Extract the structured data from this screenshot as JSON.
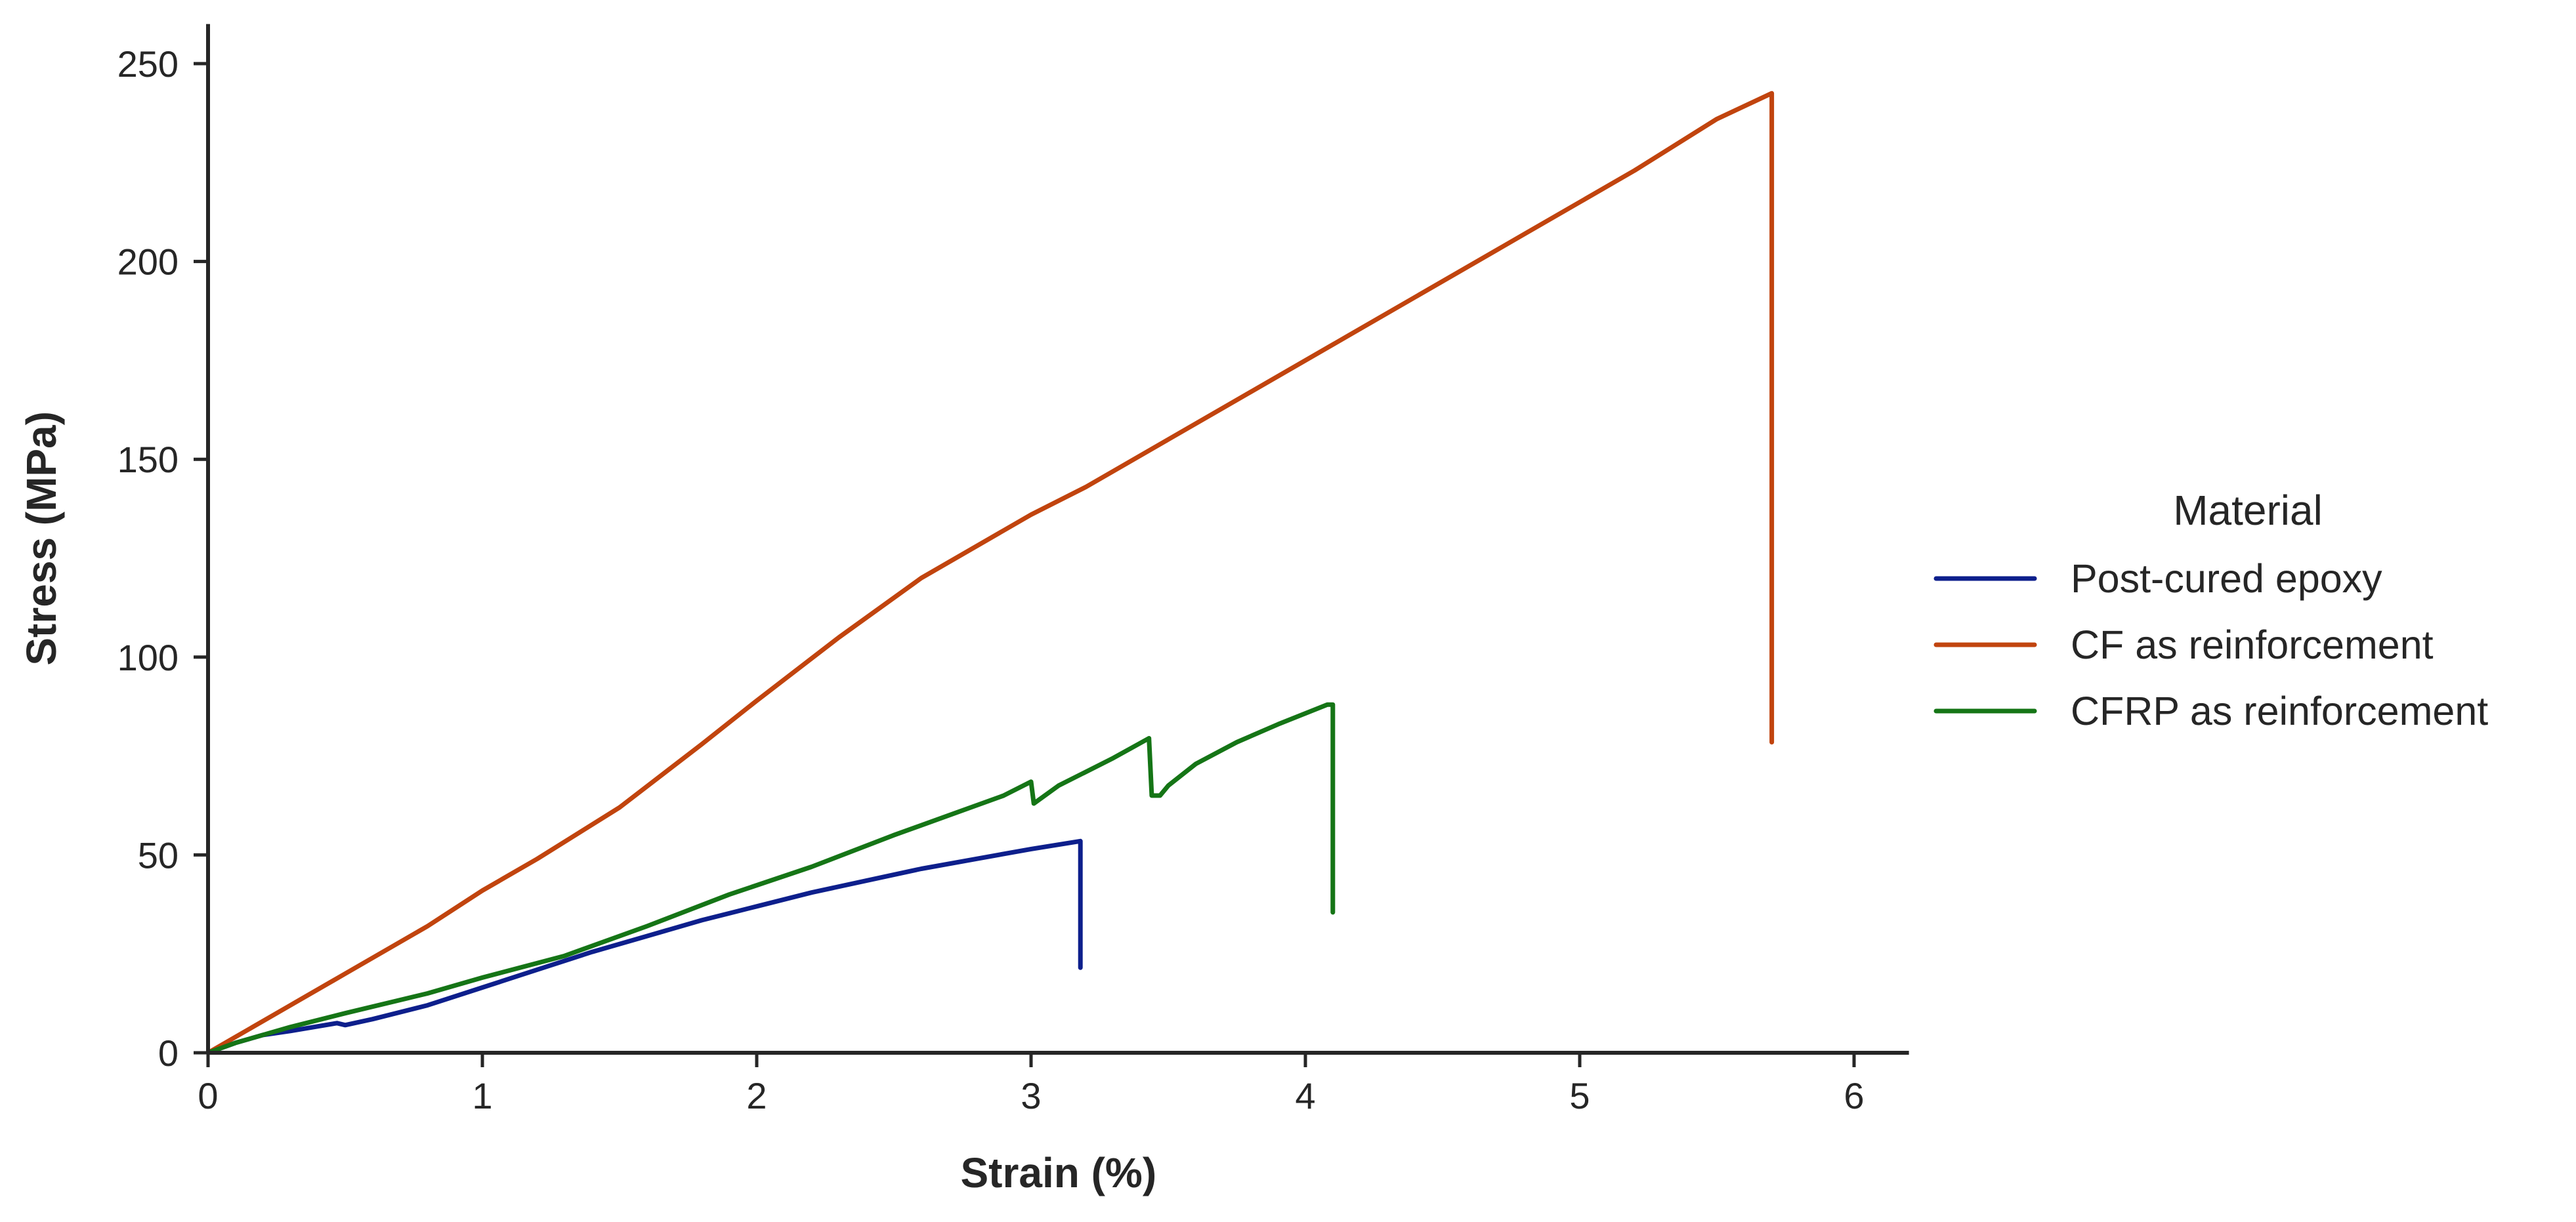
{
  "chart_data": {
    "type": "line",
    "xlabel": "Strain (%)",
    "ylabel": "Stress (MPa)",
    "xlim": [
      0,
      6.2
    ],
    "ylim": [
      0,
      260
    ],
    "xticks": [
      "0",
      "1",
      "2",
      "3",
      "4",
      "5",
      "6"
    ],
    "yticks": [
      "0",
      "50",
      "100",
      "150",
      "200",
      "250"
    ],
    "grid": false,
    "legend": {
      "title": "Material",
      "placement": "right"
    },
    "series": [
      {
        "name": "Post-cured epoxy",
        "color": "#0d1f8c",
        "x": [
          0,
          0.1,
          0.2,
          0.3,
          0.47,
          0.5,
          0.6,
          0.8,
          1.0,
          1.2,
          1.4,
          1.6,
          1.8,
          2.0,
          2.2,
          2.4,
          2.6,
          2.8,
          3.0,
          3.18,
          3.18
        ],
        "y": [
          0,
          2.5,
          4.5,
          5.5,
          7.5,
          7.0,
          8.5,
          12,
          16.5,
          21,
          25.5,
          29.5,
          33.5,
          37,
          40.5,
          43.5,
          46.5,
          49,
          51.5,
          53.5,
          21.5
        ]
      },
      {
        "name": "CF as reinforcement",
        "color": "#c1440e",
        "x": [
          0,
          0.1,
          0.3,
          0.5,
          0.8,
          1.0,
          1.2,
          1.5,
          1.8,
          2.0,
          2.3,
          2.6,
          3.0,
          3.2,
          3.5,
          3.8,
          4.1,
          4.5,
          4.8,
          5.2,
          5.5,
          5.7,
          5.7
        ],
        "y": [
          0,
          4,
          12,
          20,
          32,
          41,
          49,
          62,
          78,
          89,
          105,
          120,
          136,
          143,
          155,
          167,
          179,
          195,
          207,
          223,
          236,
          242.5,
          78.5
        ]
      },
      {
        "name": "CFRP as reinforcement",
        "color": "#157516",
        "x": [
          0,
          0.1,
          0.3,
          0.5,
          0.8,
          1.0,
          1.3,
          1.6,
          1.9,
          2.2,
          2.5,
          2.7,
          2.9,
          3.0,
          3.01,
          3.1,
          3.3,
          3.43,
          3.44,
          3.47,
          3.5,
          3.6,
          3.75,
          3.9,
          4.08,
          4.1,
          4.1
        ],
        "y": [
          0,
          2.5,
          6.5,
          10,
          15,
          19,
          24.5,
          32,
          40,
          47,
          55,
          60,
          65,
          68.5,
          63,
          67.5,
          74.5,
          79.5,
          65,
          65,
          67.5,
          73,
          78.5,
          83,
          88,
          88,
          35.5
        ]
      }
    ]
  }
}
